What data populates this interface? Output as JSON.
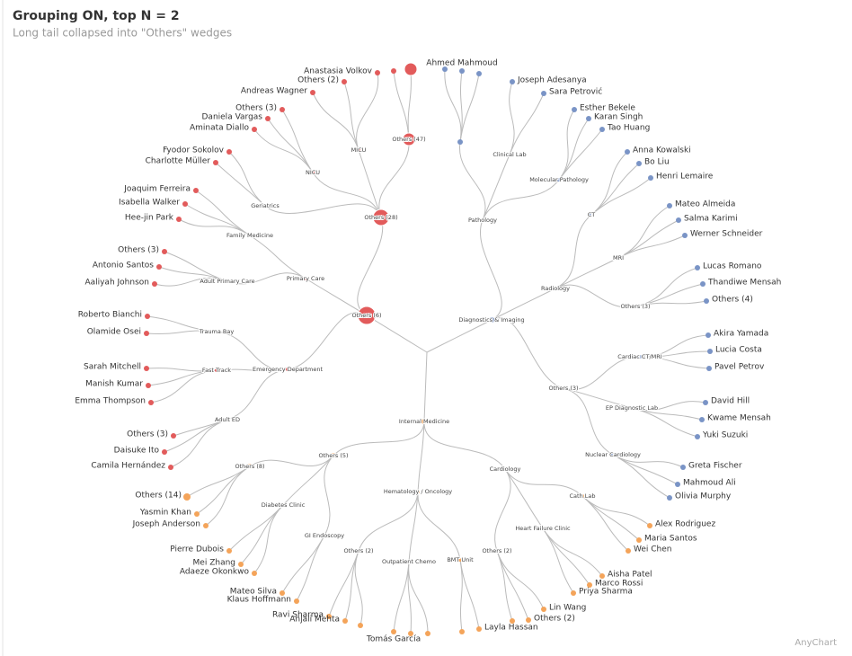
{
  "header": {
    "title": "Grouping ON, top N = 2",
    "subtitle": "Long tail collapsed into \"Others\" wedges"
  },
  "credit": "AnyChart",
  "tree": [
    {
      "label": "Others (6)",
      "color": "#e25b5b",
      "children": [
        {
          "label": "Others (28)",
          "children": [
            {
              "label": "NICU",
              "children": [
                {
                  "label": "Others (3)"
                },
                {
                  "label": "Daniela Vargas"
                },
                {
                  "label": "Aminata Diallo"
                }
              ]
            },
            {
              "label": "MICU",
              "children": [
                {
                  "label": "Andreas Wagner"
                },
                {
                  "label": "Others (2)"
                },
                {
                  "label": "Anastasia Volkov"
                }
              ]
            },
            {
              "label": "Others (47)"
            },
            {
              "label": "Geriatrics",
              "children": [
                {
                  "label": "Fyodor Sokolov"
                },
                {
                  "label": "Charlotte Müller"
                }
              ]
            }
          ]
        },
        {
          "label": "Primary Care",
          "children": [
            {
              "label": "Family Medicine",
              "children": [
                {
                  "label": "Joaquim Ferreira"
                },
                {
                  "label": "Isabella Walker"
                },
                {
                  "label": "Hee-jin Park"
                }
              ]
            },
            {
              "label": "Adult Primary Care",
              "children": [
                {
                  "label": "Others (3)"
                },
                {
                  "label": "Antonio Santos"
                },
                {
                  "label": "Aaliyah Johnson"
                }
              ]
            }
          ]
        },
        {
          "label": "Emergency Department",
          "children": [
            {
              "label": "Trauma Bay",
              "children": [
                {
                  "label": "Roberto Bianchi"
                },
                {
                  "label": "Olamide Osei"
                }
              ]
            },
            {
              "label": "Fast Track",
              "children": [
                {
                  "label": "Sarah Mitchell"
                },
                {
                  "label": "Manish Kumar"
                },
                {
                  "label": "Emma Thompson"
                }
              ]
            },
            {
              "label": "Adult ED",
              "children": [
                {
                  "label": "Others (3)"
                },
                {
                  "label": "Daisuke Ito"
                },
                {
                  "label": "Camila Hernández"
                }
              ]
            }
          ]
        }
      ]
    },
    {
      "label": "Diagnostics & Imaging",
      "color": "#7a94c6",
      "children": [
        {
          "label": "Pathology",
          "children": [
            {
              "children": [
                {
                  "label": "Ahmed Mahmoud"
                }
              ]
            },
            {
              "label": "Clinical Lab",
              "children": [
                {
                  "label": "Joseph Adesanya"
                },
                {
                  "label": "Sara Petrović"
                }
              ]
            },
            {
              "label": "Molecular Pathology",
              "children": [
                {
                  "label": "Esther Bekele"
                },
                {
                  "label": "Karan Singh"
                },
                {
                  "label": "Tao Huang"
                }
              ]
            }
          ]
        },
        {
          "label": "Radiology",
          "children": [
            {
              "label": "CT",
              "children": [
                {
                  "label": "Anna Kowalski"
                },
                {
                  "label": "Bo Liu"
                },
                {
                  "label": "Henri Lemaire"
                }
              ]
            },
            {
              "label": "MRI",
              "children": [
                {
                  "label": "Mateo Almeida"
                },
                {
                  "label": "Salma Karimi"
                },
                {
                  "label": "Werner Schneider"
                }
              ]
            },
            {
              "label": "Others (3)",
              "children": [
                {
                  "label": "Lucas Romano"
                },
                {
                  "label": "Thandiwe Mensah"
                },
                {
                  "label": "Others (4)"
                }
              ]
            }
          ]
        },
        {
          "label": "Others (3)",
          "children": [
            {
              "label": "Cardiac CT/MRI",
              "children": [
                {
                  "label": "Akira Yamada"
                },
                {
                  "label": "Lucia Costa"
                },
                {
                  "label": "Pavel Petrov"
                }
              ]
            },
            {
              "label": "EP Diagnostic Lab",
              "children": [
                {
                  "label": "David Hill"
                },
                {
                  "label": "Kwame Mensah"
                },
                {
                  "label": "Yuki Suzuki"
                }
              ]
            },
            {
              "label": "Nuclear Cardiology",
              "children": [
                {
                  "label": "Greta Fischer"
                },
                {
                  "label": "Mahmoud Ali"
                },
                {
                  "label": "Olivia Murphy"
                }
              ]
            }
          ]
        }
      ]
    },
    {
      "label": "Internal Medicine",
      "color": "#f4a45a",
      "children": [
        {
          "label": "Others (5)",
          "children": [
            {
              "label": "Others (8)",
              "children": [
                {
                  "label": "Others (14)"
                },
                {
                  "label": "Yasmin Khan"
                },
                {
                  "label": "Joseph Anderson"
                }
              ]
            },
            {
              "label": "Diabetes Clinic",
              "children": [
                {
                  "label": "Pierre Dubois"
                },
                {
                  "label": "Mei Zhang"
                },
                {
                  "label": "Adaeze Okonkwo"
                }
              ]
            },
            {
              "label": "GI Endoscopy",
              "children": [
                {
                  "label": "Mateo Silva"
                },
                {
                  "label": "Klaus Hoffmann"
                }
              ]
            }
          ]
        },
        {
          "label": "Hematology / Oncology",
          "children": [
            {
              "label": "Others (2)",
              "children": [
                {
                  "label": "Ravi Sharma"
                },
                {
                  "label": "Anjali Mehta"
                }
              ]
            },
            {
              "label": "Outpatient Chemo",
              "children": [
                {
                  "label": "Tomás García"
                }
              ]
            },
            {
              "label": "BMT Unit",
              "children": [
                {
                  "label": "Layla Hassan"
                }
              ]
            }
          ]
        },
        {
          "label": "Cardiology",
          "children": [
            {
              "label": "Cath Lab",
              "children": [
                {
                  "label": "Alex Rodriguez"
                },
                {
                  "label": "Maria Santos"
                },
                {
                  "label": "Wei Chen"
                }
              ]
            },
            {
              "label": "Heart Failure Clinic",
              "children": [
                {
                  "label": "Aisha Patel"
                },
                {
                  "label": "Marco Rossi"
                },
                {
                  "label": "Priya Sharma"
                }
              ]
            },
            {
              "label": "Others (2)",
              "children": [
                {
                  "label": "Lin Wang"
                },
                {
                  "label": "Others (2)"
                }
              ]
            }
          ]
        }
      ]
    }
  ]
}
